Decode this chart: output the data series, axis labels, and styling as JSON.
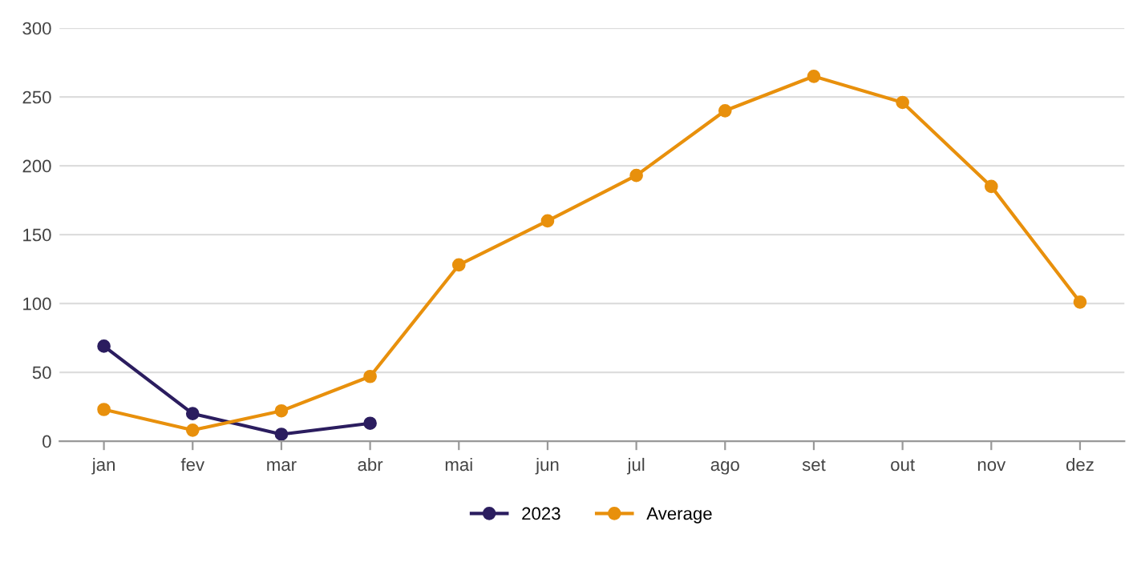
{
  "chart_data": {
    "type": "line",
    "categories": [
      "jan",
      "fev",
      "mar",
      "abr",
      "mai",
      "jun",
      "jul",
      "ago",
      "set",
      "out",
      "nov",
      "dez"
    ],
    "series": [
      {
        "name": "2023",
        "color": "#2b1d5f",
        "values": [
          69,
          20,
          5,
          13,
          null,
          null,
          null,
          null,
          null,
          null,
          null,
          null
        ]
      },
      {
        "name": "Average",
        "color": "#e8900c",
        "values": [
          23,
          8,
          22,
          47,
          128,
          160,
          193,
          240,
          265,
          246,
          185,
          101
        ]
      }
    ],
    "ylim": [
      0,
      300
    ],
    "yticks": [
      0,
      50,
      100,
      150,
      200,
      250,
      300
    ],
    "grid": "y",
    "legend": "bottom",
    "marker": "circle",
    "line_style": "solid"
  }
}
